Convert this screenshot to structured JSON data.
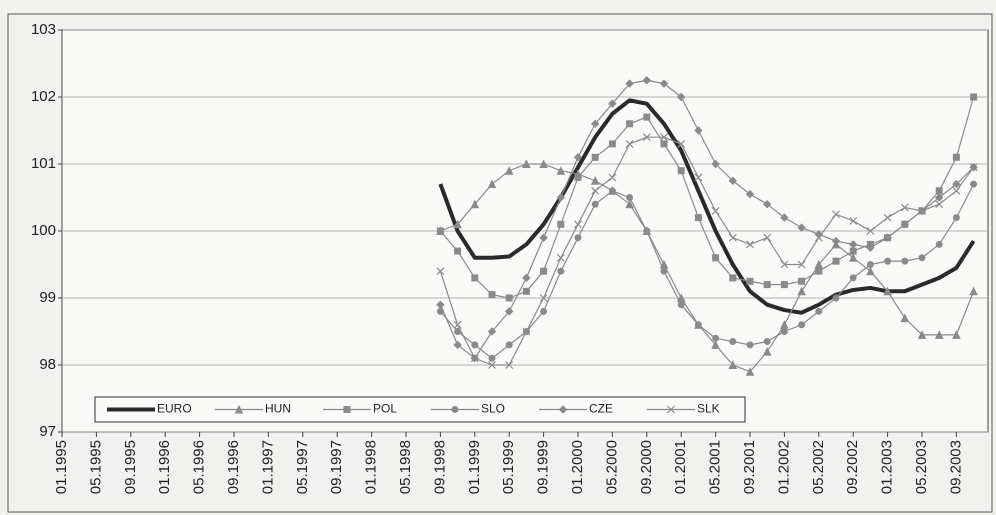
{
  "chart_data": {
    "type": "line",
    "categories": [
      "01.1995",
      null,
      "05.1995",
      null,
      "09.1995",
      null,
      "01.1996",
      null,
      "05.1996",
      null,
      "09.1996",
      null,
      "01.1997",
      null,
      "05.1997",
      null,
      "09.1997",
      null,
      "01.1998",
      null,
      "05.1998",
      null,
      "09.1998",
      null,
      "01.1999",
      null,
      "05.1999",
      null,
      "09.1999",
      null,
      "01.2000",
      null,
      "05.2000",
      null,
      "09.2000",
      null,
      "01.2001",
      null,
      "05.2001",
      null,
      "09.2001",
      null,
      "01.2002",
      null,
      "05.2002",
      null,
      "09.2002",
      null,
      "01.2003",
      null,
      "05.2003",
      null,
      "09.2003",
      null
    ],
    "series": [
      {
        "name": "EURO",
        "color": "#2a2a2a",
        "marker": "none",
        "line_width": 4,
        "values": [
          null,
          null,
          null,
          null,
          null,
          null,
          null,
          null,
          null,
          null,
          null,
          null,
          null,
          null,
          null,
          null,
          null,
          null,
          null,
          null,
          null,
          null,
          100.7,
          100.0,
          99.6,
          99.6,
          99.62,
          99.8,
          100.1,
          100.5,
          100.95,
          101.4,
          101.75,
          101.95,
          101.9,
          101.6,
          101.2,
          100.6,
          100.0,
          99.5,
          99.1,
          98.9,
          98.82,
          98.78,
          98.9,
          99.05,
          99.12,
          99.15,
          99.1,
          99.1,
          99.2,
          99.3,
          99.45,
          99.85
        ]
      },
      {
        "name": "HUN",
        "color": "#8a8a8a",
        "marker": "triangle",
        "line_width": 1.2,
        "values": [
          null,
          null,
          null,
          null,
          null,
          null,
          null,
          null,
          null,
          null,
          null,
          null,
          null,
          null,
          null,
          null,
          null,
          null,
          null,
          null,
          null,
          null,
          100.0,
          100.1,
          100.4,
          100.7,
          100.9,
          101.0,
          101.0,
          100.9,
          100.85,
          100.75,
          100.6,
          100.4,
          100.0,
          99.5,
          99.0,
          98.6,
          98.3,
          98.0,
          97.9,
          98.2,
          98.6,
          99.1,
          99.5,
          99.8,
          99.6,
          99.4,
          99.1,
          98.7,
          98.45,
          98.45,
          98.45,
          99.1
        ]
      },
      {
        "name": "POL",
        "color": "#8a8a8a",
        "marker": "square",
        "line_width": 1.2,
        "values": [
          null,
          null,
          null,
          null,
          null,
          null,
          null,
          null,
          null,
          null,
          null,
          null,
          null,
          null,
          null,
          null,
          null,
          null,
          null,
          null,
          null,
          null,
          100.0,
          99.7,
          99.3,
          99.05,
          99.0,
          99.1,
          99.4,
          100.1,
          100.8,
          101.1,
          101.3,
          101.6,
          101.7,
          101.3,
          100.9,
          100.2,
          99.6,
          99.3,
          99.25,
          99.2,
          99.2,
          99.25,
          99.4,
          99.55,
          99.7,
          99.8,
          99.9,
          100.1,
          100.3,
          100.6,
          101.1,
          102.0
        ]
      },
      {
        "name": "SLO",
        "color": "#8a8a8a",
        "marker": "circle",
        "line_width": 1.2,
        "values": [
          null,
          null,
          null,
          null,
          null,
          null,
          null,
          null,
          null,
          null,
          null,
          null,
          null,
          null,
          null,
          null,
          null,
          null,
          null,
          null,
          null,
          null,
          98.8,
          98.5,
          98.3,
          98.1,
          98.3,
          98.5,
          98.8,
          99.4,
          99.9,
          100.4,
          100.6,
          100.5,
          100.0,
          99.4,
          98.9,
          98.6,
          98.4,
          98.35,
          98.3,
          98.35,
          98.5,
          98.6,
          98.8,
          99.0,
          99.3,
          99.5,
          99.55,
          99.55,
          99.6,
          99.8,
          100.2,
          100.7
        ]
      },
      {
        "name": "CZE",
        "color": "#8a8a8a",
        "marker": "diamond",
        "line_width": 1.2,
        "values": [
          null,
          null,
          null,
          null,
          null,
          null,
          null,
          null,
          null,
          null,
          null,
          null,
          null,
          null,
          null,
          null,
          null,
          null,
          null,
          null,
          null,
          null,
          98.9,
          98.3,
          98.1,
          98.5,
          98.8,
          99.3,
          99.9,
          100.5,
          101.1,
          101.6,
          101.9,
          102.2,
          102.25,
          102.2,
          102.0,
          101.5,
          101.0,
          100.75,
          100.55,
          100.4,
          100.2,
          100.05,
          99.95,
          99.85,
          99.8,
          99.75,
          99.9,
          100.1,
          100.3,
          100.5,
          100.7,
          100.95
        ]
      },
      {
        "name": "SLK",
        "color": "#8a8a8a",
        "marker": "x",
        "line_width": 1.2,
        "values": [
          null,
          null,
          null,
          null,
          null,
          null,
          null,
          null,
          null,
          null,
          null,
          null,
          null,
          null,
          null,
          null,
          null,
          null,
          null,
          null,
          null,
          null,
          99.4,
          98.6,
          98.1,
          98.0,
          98.0,
          98.5,
          99.0,
          99.6,
          100.1,
          100.6,
          100.8,
          101.3,
          101.4,
          101.4,
          101.3,
          100.8,
          100.3,
          99.9,
          99.8,
          99.9,
          99.5,
          99.5,
          99.9,
          100.25,
          100.15,
          100.0,
          100.2,
          100.35,
          100.3,
          100.4,
          100.6,
          100.95
        ]
      }
    ],
    "ylim": [
      97,
      103
    ],
    "yticks": [
      97,
      98,
      99,
      100,
      101,
      102,
      103
    ],
    "grid": true,
    "legend": "bottom-left"
  }
}
